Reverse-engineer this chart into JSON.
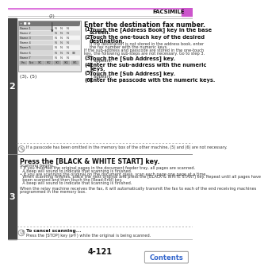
{
  "page_number": "4-121",
  "header_text": "FACSIMILE",
  "header_bar_color": "#dd77dd",
  "header_purple_color": "#cc55cc",
  "bg_color": "#ffffff",
  "border_color": "#cccccc",
  "text_dark": "#111111",
  "text_mid": "#333333",
  "text_gray": "#666666",
  "step_bg": "#444444",
  "contents_color": "#3366cc",
  "section2": {
    "step_number": "2",
    "title": "Enter the destination fax number.",
    "items": [
      {
        "num": "(1)",
        "bold": "Touch the [Address Book] key in the base\nscreen."
      },
      {
        "num": "(2)",
        "bold": "Touch the one-touch key of the desired\ndestination.",
        "note": "If the destination is not stored in the address book, enter\nthe fax number with the numeric keys."
      },
      {
        "num": "",
        "note2": "If the sub-address and passcode are stored in the one-touch\nkey, the following sub-steps are not necessary. Go to step 3."
      },
      {
        "num": "(3)",
        "bold": "Touch the [Sub Address] key.",
        "sub": "’/ appears."
      },
      {
        "num": "(4)",
        "bold": "Enter the sub-address with the numeric\nkeys."
      },
      {
        "num": "(5)",
        "bold": "Touch the [Sub Address] key.",
        "sub": "’/ appears."
      },
      {
        "num": "(6)",
        "bold": "Enter the passcode with the numeric keys."
      }
    ],
    "note_text": "If a passcode has been omitted in the memory box of the other machine, (5) and (6) are not necessary."
  },
  "section3": {
    "step_number": "3",
    "title": "Press the [BLACK & WHITE START] key.",
    "body_lines": [
      "Scanning begins.",
      "• If you inserted the original pages in the document feeder tray, all pages are scanned.",
      "  A beep will sound to indicate that scanning is finished.",
      "• If you are scanning the original on the document glass, scan each page one page at a time.",
      "  When scanning finishes, place the next original and press the [BLACK & WHITE START] key. Repeat until all pages have",
      "  been scanned and then touch the [Read-End] key.",
      "  A beep will sound to indicate that scanning is finished.",
      "",
      "When the relay machine receives the fax, it will automatically transmit the fax to each of the end receiving machines",
      "programmed in the memory box."
    ],
    "cancel_bold": "To cancel scanning...",
    "cancel_text": "Press the [STOP] key (ø®) while the original is being scanned."
  },
  "contents_text": "Contents"
}
